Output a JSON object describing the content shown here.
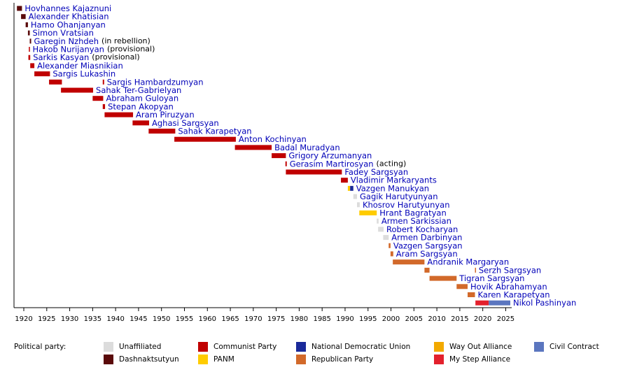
{
  "chart_data": {
    "type": "timeline",
    "xlim": [
      1918,
      2026
    ],
    "xticks": [
      1920,
      1925,
      1930,
      1935,
      1940,
      1945,
      1950,
      1955,
      1960,
      1965,
      1970,
      1975,
      1980,
      1985,
      1990,
      1995,
      2000,
      2005,
      2010,
      2015,
      2020,
      2025
    ],
    "legend_title": "Political party:",
    "parties": [
      {
        "name": "Unaffiliated",
        "color": "#dcdcdc"
      },
      {
        "name": "Dashnaktsutyun",
        "color": "#5a0a0a"
      },
      {
        "name": "Communist Party",
        "color": "#c00000"
      },
      {
        "name": "PANM",
        "color": "#ffcc00"
      },
      {
        "name": "National Democratic Union",
        "color": "#1a2a9a"
      },
      {
        "name": "Republican Party",
        "color": "#d2692a"
      },
      {
        "name": "Way Out Alliance",
        "color": "#f2a900"
      },
      {
        "name": "My Step Alliance",
        "color": "#e3202c"
      },
      {
        "name": "Civil Contract",
        "color": "#5b76bf"
      }
    ],
    "rows": [
      {
        "name": "Hovhannes Kajaznuni",
        "segments": [
          {
            "start": 1918.5,
            "end": 1919.6,
            "party": "Dashnaktsutyun"
          }
        ]
      },
      {
        "name": "Alexander Khatisian",
        "segments": [
          {
            "start": 1919.4,
            "end": 1920.4,
            "party": "Dashnaktsutyun"
          }
        ]
      },
      {
        "name": "Hamo Ohanjanyan",
        "segments": [
          {
            "start": 1920.4,
            "end": 1920.9,
            "party": "Dashnaktsutyun"
          }
        ]
      },
      {
        "name": "Simon Vratsian",
        "segments": [
          {
            "start": 1920.9,
            "end": 1921.3,
            "party": "Dashnaktsutyun"
          }
        ]
      },
      {
        "name": "Garegin Nzhdeh",
        "note": "(in rebellion)",
        "segments": [
          {
            "start": 1921.3,
            "end": 1921.6,
            "party": "Dashnaktsutyun"
          }
        ]
      },
      {
        "name": "Hakob Nurijanyan",
        "note": "(provisional)",
        "segments": [
          {
            "start": 1921.1,
            "end": 1921.3,
            "party": "Communist Party"
          }
        ]
      },
      {
        "name": "Sarkis Kasyan",
        "note": "(provisional)",
        "segments": [
          {
            "start": 1921.0,
            "end": 1921.4,
            "party": "Communist Party"
          }
        ]
      },
      {
        "name": "Alexander Miasnikian",
        "segments": [
          {
            "start": 1921.4,
            "end": 1922.3,
            "party": "Communist Party"
          }
        ]
      },
      {
        "name": "Sargis Lukashin",
        "segments": [
          {
            "start": 1922.3,
            "end": 1925.7,
            "party": "Communist Party"
          }
        ]
      },
      {
        "name": "Sargis Hambardzumyan",
        "segments": [
          {
            "start": 1925.5,
            "end": 1928.3,
            "party": "Communist Party"
          },
          {
            "start": 1937.2,
            "end": 1937.5,
            "party": "Communist Party"
          }
        ]
      },
      {
        "name": "Sahak Ter-Gabrielyan",
        "segments": [
          {
            "start": 1928.1,
            "end": 1935.1,
            "party": "Communist Party"
          }
        ]
      },
      {
        "name": "Abraham Guloyan",
        "segments": [
          {
            "start": 1935.0,
            "end": 1937.3,
            "party": "Communist Party"
          }
        ]
      },
      {
        "name": "Stepan Akopyan",
        "segments": [
          {
            "start": 1937.2,
            "end": 1937.7,
            "party": "Communist Party"
          }
        ]
      },
      {
        "name": "Aram Piruzyan",
        "segments": [
          {
            "start": 1937.6,
            "end": 1943.8,
            "party": "Communist Party"
          }
        ]
      },
      {
        "name": "Aghasi Sargsyan",
        "segments": [
          {
            "start": 1943.7,
            "end": 1947.3,
            "party": "Communist Party"
          }
        ]
      },
      {
        "name": "Sahak Karapetyan",
        "segments": [
          {
            "start": 1947.2,
            "end": 1953.0,
            "party": "Communist Party"
          }
        ]
      },
      {
        "name": "Anton Kochinyan",
        "segments": [
          {
            "start": 1952.8,
            "end": 1966.2,
            "party": "Communist Party"
          }
        ]
      },
      {
        "name": "Badal Muradyan",
        "segments": [
          {
            "start": 1966.0,
            "end": 1974.0,
            "party": "Communist Party"
          }
        ]
      },
      {
        "name": "Grigory Arzumanyan",
        "segments": [
          {
            "start": 1974.0,
            "end": 1977.1,
            "party": "Communist Party"
          }
        ]
      },
      {
        "name": "Gerasim Martirosyan",
        "note": "(acting)",
        "segments": [
          {
            "start": 1977.0,
            "end": 1977.3,
            "party": "Communist Party"
          }
        ]
      },
      {
        "name": "Fadey Sargsyan",
        "segments": [
          {
            "start": 1977.1,
            "end": 1989.3,
            "party": "Communist Party"
          }
        ]
      },
      {
        "name": "Vladimir Markaryants",
        "segments": [
          {
            "start": 1989.1,
            "end": 1990.6,
            "party": "Communist Party"
          }
        ]
      },
      {
        "name": "Vazgen Manukyan",
        "segments": [
          {
            "start": 1990.6,
            "end": 1991.1,
            "party": "PANM"
          },
          {
            "start": 1991.1,
            "end": 1991.8,
            "party": "National Democratic Union"
          }
        ]
      },
      {
        "name": "Gagik Harutyunyan",
        "segments": [
          {
            "start": 1991.8,
            "end": 1992.6,
            "party": "Unaffiliated"
          }
        ]
      },
      {
        "name": "Khosrov Harutyunyan",
        "segments": [
          {
            "start": 1992.6,
            "end": 1993.2,
            "party": "Unaffiliated"
          }
        ]
      },
      {
        "name": "Hrant Bagratyan",
        "segments": [
          {
            "start": 1993.1,
            "end": 1996.9,
            "party": "PANM"
          }
        ]
      },
      {
        "name": "Armen Sarkissian",
        "segments": [
          {
            "start": 1996.9,
            "end": 1997.3,
            "party": "Unaffiliated"
          }
        ]
      },
      {
        "name": "Robert Kocharyan",
        "segments": [
          {
            "start": 1997.2,
            "end": 1998.4,
            "party": "Unaffiliated"
          }
        ]
      },
      {
        "name": "Armen Darbinyan",
        "segments": [
          {
            "start": 1998.3,
            "end": 1999.5,
            "party": "Unaffiliated"
          }
        ]
      },
      {
        "name": "Vazgen Sargsyan",
        "segments": [
          {
            "start": 1999.5,
            "end": 1999.9,
            "party": "Republican Party"
          }
        ]
      },
      {
        "name": "Aram Sargsyan",
        "segments": [
          {
            "start": 1999.9,
            "end": 2000.5,
            "party": "Republican Party"
          }
        ]
      },
      {
        "name": "Andranik Margaryan",
        "segments": [
          {
            "start": 2000.4,
            "end": 2007.3,
            "party": "Republican Party"
          }
        ]
      },
      {
        "name": "Serzh Sargsyan",
        "segments": [
          {
            "start": 2007.3,
            "end": 2008.4,
            "party": "Republican Party"
          },
          {
            "start": 2018.3,
            "end": 2018.5,
            "party": "Republican Party"
          }
        ]
      },
      {
        "name": "Tigran Sargsyan",
        "segments": [
          {
            "start": 2008.4,
            "end": 2014.3,
            "party": "Republican Party"
          }
        ]
      },
      {
        "name": "Hovik Abrahamyan",
        "segments": [
          {
            "start": 2014.3,
            "end": 2016.7,
            "party": "Republican Party"
          }
        ]
      },
      {
        "name": "Karen Karapetyan",
        "segments": [
          {
            "start": 2016.7,
            "end": 2018.3,
            "party": "Republican Party"
          }
        ]
      },
      {
        "name": "Nikol Pashinyan",
        "segments": [
          {
            "start": 2018.4,
            "end": 2021.3,
            "party": "My Step Alliance"
          },
          {
            "start": 2021.3,
            "end": 2026.0,
            "party": "Civil Contract"
          }
        ]
      }
    ]
  }
}
